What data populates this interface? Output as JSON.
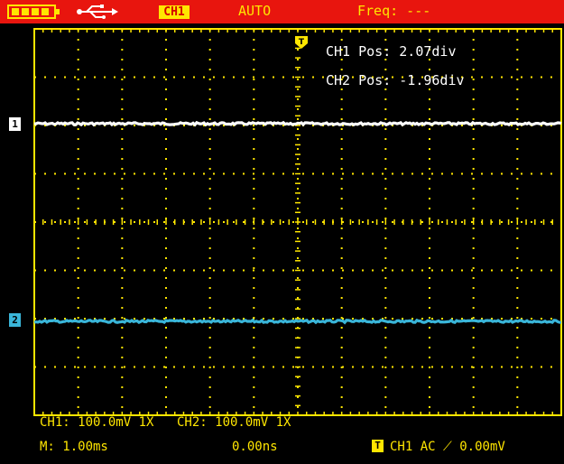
{
  "status_bar": {
    "channel_tag": "CH1",
    "trigger_mode": "AUTO",
    "frequency": "Freq: ---",
    "icons": [
      "battery-icon",
      "usb-icon"
    ]
  },
  "markers": {
    "ch1": "1",
    "ch2": "2",
    "trigger": "T"
  },
  "overlay": {
    "ch1_pos": "CH1 Pos: 2.07div",
    "ch2_pos": "CH2 Pos: -1.96div"
  },
  "footer": {
    "ch1_scale": "CH1: 100.0mV 1X",
    "ch2_scale": "CH2: 100.0mV 1X",
    "timebase": "M: 1.00ms",
    "time_offset": "0.00ns",
    "trigger_badge": "T",
    "trigger_info": "CH1 AC ⟋ 0.00mV"
  },
  "colors": {
    "status_bar": "#e8150e",
    "grid": "#ffe600",
    "ch1_trace": "#ffffff",
    "ch2_trace": "#3ab5d8"
  }
}
